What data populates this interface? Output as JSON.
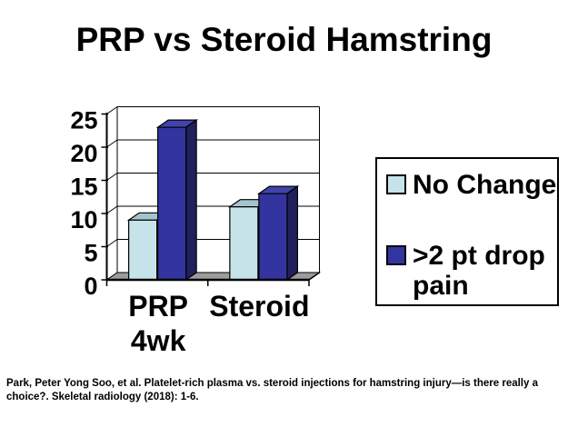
{
  "slide": {
    "title": "PRP vs Steroid Hamstring",
    "citation": "Park, Peter Yong Soo, et al. Platelet-rich plasma vs. steroid injections for hamstring injury—is there really a choice?. Skeletal radiology (2018): 1-6.",
    "background_color": "#ffffff",
    "text_color": "#000000"
  },
  "chart_data": {
    "type": "bar",
    "style": "3d-clustered-column",
    "title": "PRP vs Steroid Hamstring",
    "categories": [
      "PRP 4wk",
      "Steroid"
    ],
    "series": [
      {
        "name": "No Change",
        "values": [
          9,
          11
        ],
        "color": "#c6e3e9",
        "color_top": "#a4c4cb",
        "color_side": "#7fa1aa"
      },
      {
        "name": ">2 pt drop pain",
        "values": [
          23,
          13
        ],
        "color": "#3434a0",
        "color_top": "#4242ad",
        "color_side": "#20205a"
      }
    ],
    "xlabel": "",
    "ylabel": "",
    "ylim": [
      0,
      25
    ],
    "yticks": [
      0,
      5,
      10,
      15,
      20,
      25
    ],
    "grid": true,
    "legend_position": "right",
    "floor_color": "#9c9c9c",
    "wall_color": "#ffffff",
    "axis_color": "#000000"
  }
}
